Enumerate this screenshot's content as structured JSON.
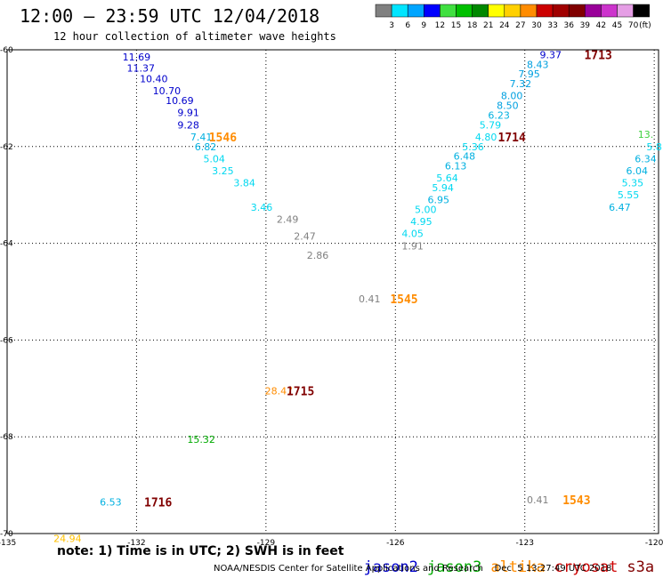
{
  "header": {
    "title": "12:00 — 23:59 UTC 12/04/2018",
    "subtitle": "12 hour collection of altimeter wave heights"
  },
  "color_scale": {
    "unit": "(ft)",
    "levels": [
      "3",
      "6",
      "9",
      "12",
      "15",
      "18",
      "21",
      "24",
      "27",
      "30",
      "33",
      "36",
      "39",
      "42",
      "45",
      "70"
    ],
    "colors": [
      "#808080",
      "#00e5ff",
      "#00a5ff",
      "#0000ff",
      "#40e040",
      "#00c000",
      "#008800",
      "#ffff00",
      "#ffd000",
      "#ff8c00",
      "#cc0000",
      "#a00000",
      "#800000",
      "#990099",
      "#cc33cc",
      "#e59ee5",
      "#000000"
    ]
  },
  "map": {
    "longitude_ticks": [
      "-135",
      "-132",
      "-129",
      "-126",
      "-123",
      "-120"
    ],
    "latitude_ticks": [
      "-60",
      "-62",
      "-64",
      "-66",
      "-68",
      "-70"
    ],
    "lon_range": [
      -135,
      -119.9
    ],
    "lat_range": [
      -60,
      -70
    ]
  },
  "observations": [
    {
      "lon": -132.0,
      "lat": -60.15,
      "value": "11.69",
      "color": "#0000cc"
    },
    {
      "lon": -131.9,
      "lat": -60.38,
      "value": "11.37",
      "color": "#0000cc"
    },
    {
      "lon": -131.6,
      "lat": -60.6,
      "value": "10.40",
      "color": "#0000cc"
    },
    {
      "lon": -131.3,
      "lat": -60.85,
      "value": "10.70",
      "color": "#0000cc"
    },
    {
      "lon": -131.0,
      "lat": -61.05,
      "value": "10.69",
      "color": "#0000cc"
    },
    {
      "lon": -130.8,
      "lat": -61.3,
      "value": "9.91",
      "color": "#0000cc"
    },
    {
      "lon": -130.8,
      "lat": -61.55,
      "value": "9.28",
      "color": "#0000cc"
    },
    {
      "lon": -130.5,
      "lat": -61.8,
      "value": "7.41",
      "color": "#00b0e0"
    },
    {
      "lon": -130.4,
      "lat": -62.0,
      "value": "6.82",
      "color": "#00b0e0"
    },
    {
      "lon": -130.2,
      "lat": -62.25,
      "value": "5.04",
      "color": "#00d8f0"
    },
    {
      "lon": -130.0,
      "lat": -62.5,
      "value": "3.25",
      "color": "#00d8f0"
    },
    {
      "lon": -129.5,
      "lat": -62.75,
      "value": "3.84",
      "color": "#00d8f0"
    },
    {
      "lon": -129.1,
      "lat": -63.25,
      "value": "3.46",
      "color": "#00d8f0"
    },
    {
      "lon": -128.5,
      "lat": -63.5,
      "value": "2.49",
      "color": "#808080"
    },
    {
      "lon": -128.1,
      "lat": -63.85,
      "value": "2.47",
      "color": "#808080"
    },
    {
      "lon": -127.8,
      "lat": -64.25,
      "value": "2.86",
      "color": "#808080"
    },
    {
      "lon": -126.6,
      "lat": -65.15,
      "value": "0.41",
      "color": "#808080"
    },
    {
      "lon": -128.7,
      "lat": -67.05,
      "value": "28.47",
      "color": "#ff8c00"
    },
    {
      "lon": -130.5,
      "lat": -68.05,
      "value": "15.32",
      "color": "#00aa00"
    },
    {
      "lon": -132.6,
      "lat": -69.35,
      "value": "6.53",
      "color": "#00b0e0"
    },
    {
      "lon": -133.6,
      "lat": -70.1,
      "value": "24.94",
      "color": "#ffc000"
    },
    {
      "lon": -125.6,
      "lat": -64.05,
      "value": "1.91",
      "color": "#808080"
    },
    {
      "lon": -125.6,
      "lat": -63.8,
      "value": "4.05",
      "color": "#00d8f0"
    },
    {
      "lon": -125.4,
      "lat": -63.55,
      "value": "4.95",
      "color": "#00d8f0"
    },
    {
      "lon": -125.3,
      "lat": -63.3,
      "value": "5.00",
      "color": "#00d8f0"
    },
    {
      "lon": -125.0,
      "lat": -63.1,
      "value": "6.95",
      "color": "#00b0e0"
    },
    {
      "lon": -124.9,
      "lat": -62.85,
      "value": "5.94",
      "color": "#00d8f0"
    },
    {
      "lon": -124.8,
      "lat": -62.65,
      "value": "5.64",
      "color": "#00d8f0"
    },
    {
      "lon": -124.6,
      "lat": -62.4,
      "value": "6.13",
      "color": "#00b0e0"
    },
    {
      "lon": -124.4,
      "lat": -62.2,
      "value": "6.48",
      "color": "#00b0e0"
    },
    {
      "lon": -124.2,
      "lat": -62.0,
      "value": "5.36",
      "color": "#00d8f0"
    },
    {
      "lon": -123.9,
      "lat": -61.8,
      "value": "4.80",
      "color": "#00d8f0"
    },
    {
      "lon": -123.8,
      "lat": -61.55,
      "value": "5.79",
      "color": "#00d8f0"
    },
    {
      "lon": -123.6,
      "lat": -61.35,
      "value": "6.23",
      "color": "#00b0e0"
    },
    {
      "lon": -123.4,
      "lat": -61.15,
      "value": "8.50",
      "color": "#00a0e0"
    },
    {
      "lon": -123.3,
      "lat": -60.95,
      "value": "8.00",
      "color": "#00a0e0"
    },
    {
      "lon": -123.1,
      "lat": -60.7,
      "value": "7.32",
      "color": "#00a0e0"
    },
    {
      "lon": -122.9,
      "lat": -60.5,
      "value": "7.95",
      "color": "#00a0e0"
    },
    {
      "lon": -122.7,
      "lat": -60.3,
      "value": "8.43",
      "color": "#00a0e0"
    },
    {
      "lon": -122.4,
      "lat": -60.1,
      "value": "9.37",
      "color": "#0000cc"
    },
    {
      "lon": -120.2,
      "lat": -61.75,
      "value": "13.",
      "color": "#40d040"
    },
    {
      "lon": -120.0,
      "lat": -62.0,
      "value": "5.8",
      "color": "#00d8f0"
    },
    {
      "lon": -120.2,
      "lat": -62.25,
      "value": "6.34",
      "color": "#00b0e0"
    },
    {
      "lon": -120.4,
      "lat": -62.5,
      "value": "6.04",
      "color": "#00b0e0"
    },
    {
      "lon": -120.5,
      "lat": -62.75,
      "value": "5.35",
      "color": "#00d8f0"
    },
    {
      "lon": -120.6,
      "lat": -63.0,
      "value": "5.55",
      "color": "#00d8f0"
    },
    {
      "lon": -120.8,
      "lat": -63.25,
      "value": "6.47",
      "color": "#00b0e0"
    },
    {
      "lon": -122.7,
      "lat": -69.3,
      "value": "0.41",
      "color": "#808080"
    }
  ],
  "pass_labels": [
    {
      "lon": -130.0,
      "lat": -61.8,
      "label": "1546",
      "color": "#ff8c00"
    },
    {
      "lon": -125.8,
      "lat": -65.15,
      "label": "1545",
      "color": "#ff8c00"
    },
    {
      "lon": -128.2,
      "lat": -67.05,
      "label": "1715",
      "color": "#800000"
    },
    {
      "lon": -131.5,
      "lat": -69.35,
      "label": "1716",
      "color": "#800000"
    },
    {
      "lon": -123.3,
      "lat": -61.8,
      "label": "1714",
      "color": "#800000"
    },
    {
      "lon": -121.3,
      "lat": -60.1,
      "label": "1713",
      "color": "#800000"
    },
    {
      "lon": -121.8,
      "lat": -69.3,
      "label": "1543",
      "color": "#ff8c00"
    }
  ],
  "footer": {
    "note": "note: 1) Time is in UTC; 2) SWH is in feet",
    "satellites": [
      {
        "name": "jason2",
        "color": "#0000cc"
      },
      {
        "name": "jason3",
        "color": "#00aa00"
      },
      {
        "name": "altika",
        "color": "#ff8c00"
      },
      {
        "name": "cryosat",
        "color": "#cc0000"
      },
      {
        "name": "s3a",
        "color": "#800000"
      }
    ],
    "credit": "NOAA/NESDIS Center for Satellite Applications and Research    Dec  5 13:27:49 UTC 2018"
  }
}
